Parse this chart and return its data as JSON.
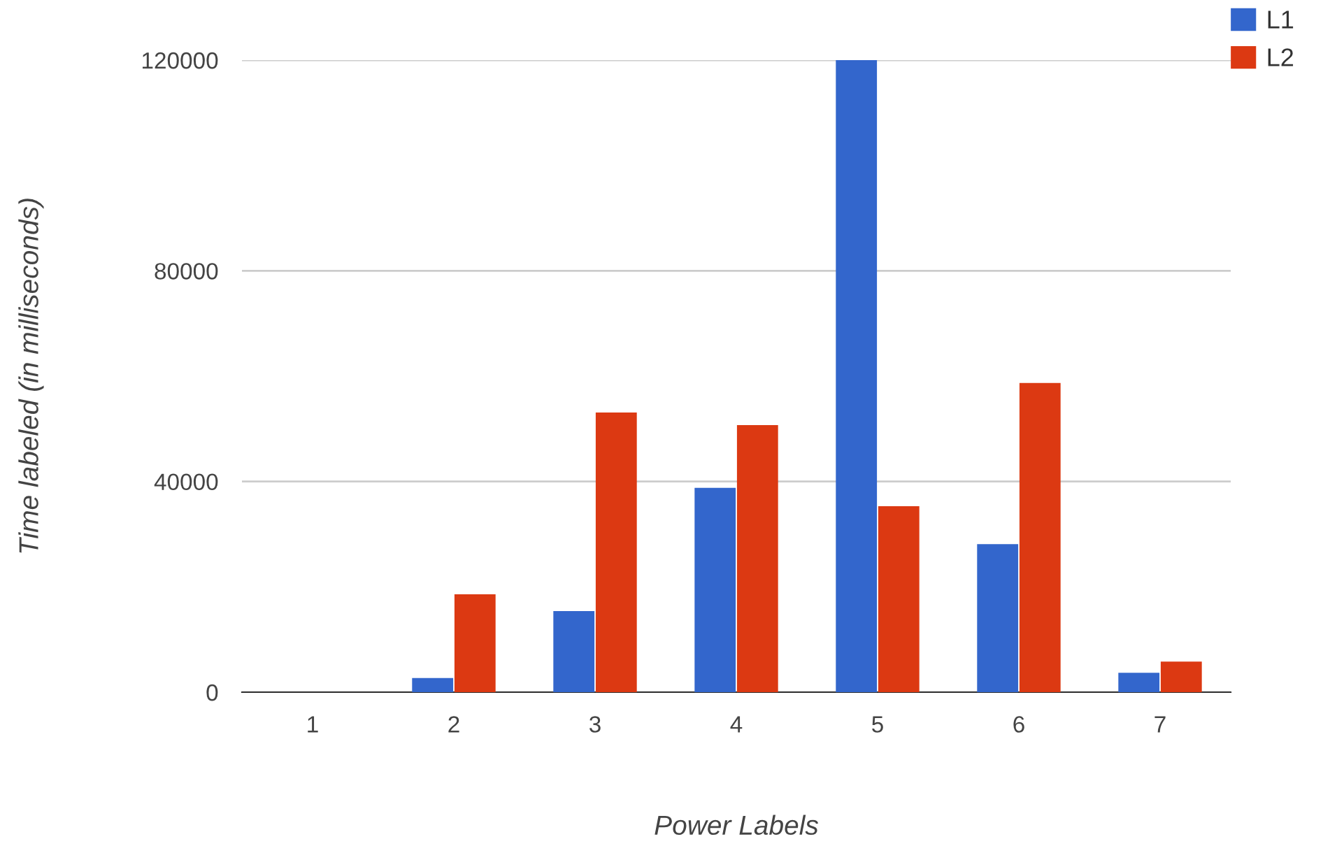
{
  "chart_data": {
    "type": "bar",
    "xlabel": "Power Labels",
    "ylabel": "Time labeled (in milliseconds)",
    "categories": [
      "1",
      "2",
      "3",
      "4",
      "5",
      "6",
      "7"
    ],
    "series": [
      {
        "name": "L1",
        "color": "#3366cc",
        "values": [
          0,
          2700,
          15400,
          38800,
          120000,
          28100,
          3700
        ]
      },
      {
        "name": "L2",
        "color": "#dc3912",
        "values": [
          0,
          18600,
          53100,
          50700,
          35300,
          58700,
          5800
        ]
      }
    ],
    "ylim": [
      0,
      120000
    ],
    "yticks": [
      0,
      40000,
      80000,
      120000
    ],
    "grid": "y",
    "legend": "top right"
  }
}
